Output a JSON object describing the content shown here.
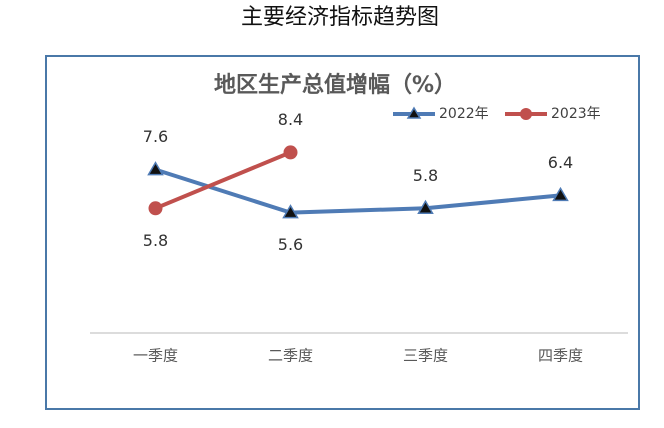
{
  "page_title": "主要经济指标趋势图",
  "chart_data": {
    "type": "line",
    "title": "地区生产总值增幅（%）",
    "categories": [
      "一季度",
      "二季度",
      "三季度",
      "四季度"
    ],
    "series": [
      {
        "name": "2022年",
        "color": "#4f7bb5",
        "marker": "triangle",
        "values": [
          7.6,
          5.6,
          5.8,
          6.4
        ]
      },
      {
        "name": "2023年",
        "color": "#c0504d",
        "marker": "circle",
        "values": [
          5.8,
          8.4,
          null,
          null
        ]
      }
    ],
    "ylim": [
      0,
      10
    ]
  }
}
